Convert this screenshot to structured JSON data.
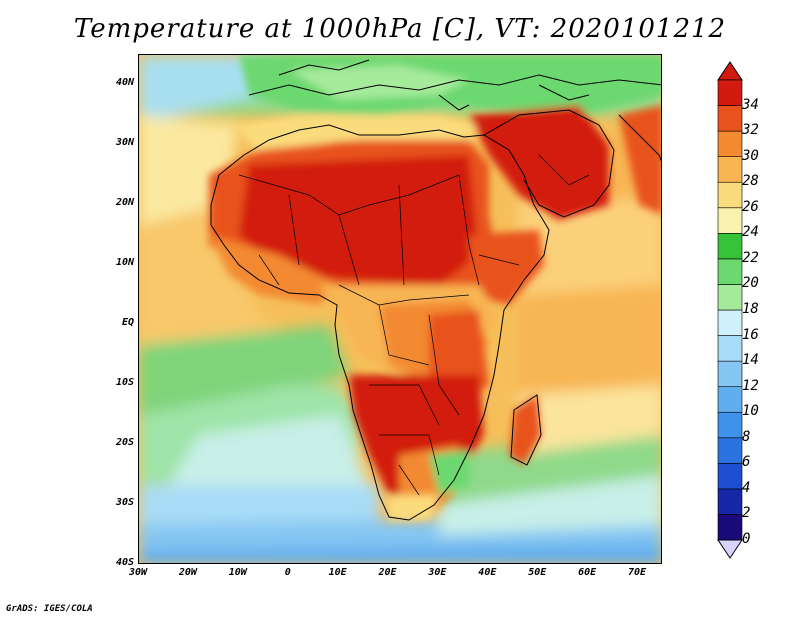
{
  "title": "Temperature at 1000hPa [C], VT: 2020101212",
  "credit": "GrADS: IGES/COLA",
  "map": {
    "lon_range": [
      -30,
      75
    ],
    "lat_range": [
      -40,
      45
    ],
    "lon_ticks": [
      {
        "value": -30,
        "label": "30W"
      },
      {
        "value": -20,
        "label": "20W"
      },
      {
        "value": -10,
        "label": "10W"
      },
      {
        "value": 0,
        "label": "0"
      },
      {
        "value": 10,
        "label": "10E"
      },
      {
        "value": 20,
        "label": "20E"
      },
      {
        "value": 30,
        "label": "30E"
      },
      {
        "value": 40,
        "label": "40E"
      },
      {
        "value": 50,
        "label": "50E"
      },
      {
        "value": 60,
        "label": "60E"
      },
      {
        "value": 70,
        "label": "70E"
      }
    ],
    "lat_ticks": [
      {
        "value": 40,
        "label": "40N"
      },
      {
        "value": 30,
        "label": "30N"
      },
      {
        "value": 20,
        "label": "20N"
      },
      {
        "value": 10,
        "label": "10N"
      },
      {
        "value": 0,
        "label": "EQ"
      },
      {
        "value": -10,
        "label": "10S"
      },
      {
        "value": -20,
        "label": "20S"
      },
      {
        "value": -30,
        "label": "30S"
      },
      {
        "value": -40,
        "label": "40S"
      }
    ]
  },
  "colorbar": {
    "levels": [
      "0",
      "2",
      "4",
      "6",
      "8",
      "10",
      "12",
      "14",
      "16",
      "18",
      "20",
      "22",
      "24",
      "26",
      "28",
      "30",
      "32",
      "34"
    ],
    "colors": [
      "#1a0a7a",
      "#1528a8",
      "#1d4fd0",
      "#2a73e0",
      "#3e92ea",
      "#61aeee",
      "#85c6f2",
      "#a8dcf6",
      "#d0f0fb",
      "#a6ea9c",
      "#6cd870",
      "#36c33a",
      "#f9f3b0",
      "#fbdc7c",
      "#f8b552",
      "#f38a30",
      "#e8521c",
      "#d21a10"
    ]
  }
}
